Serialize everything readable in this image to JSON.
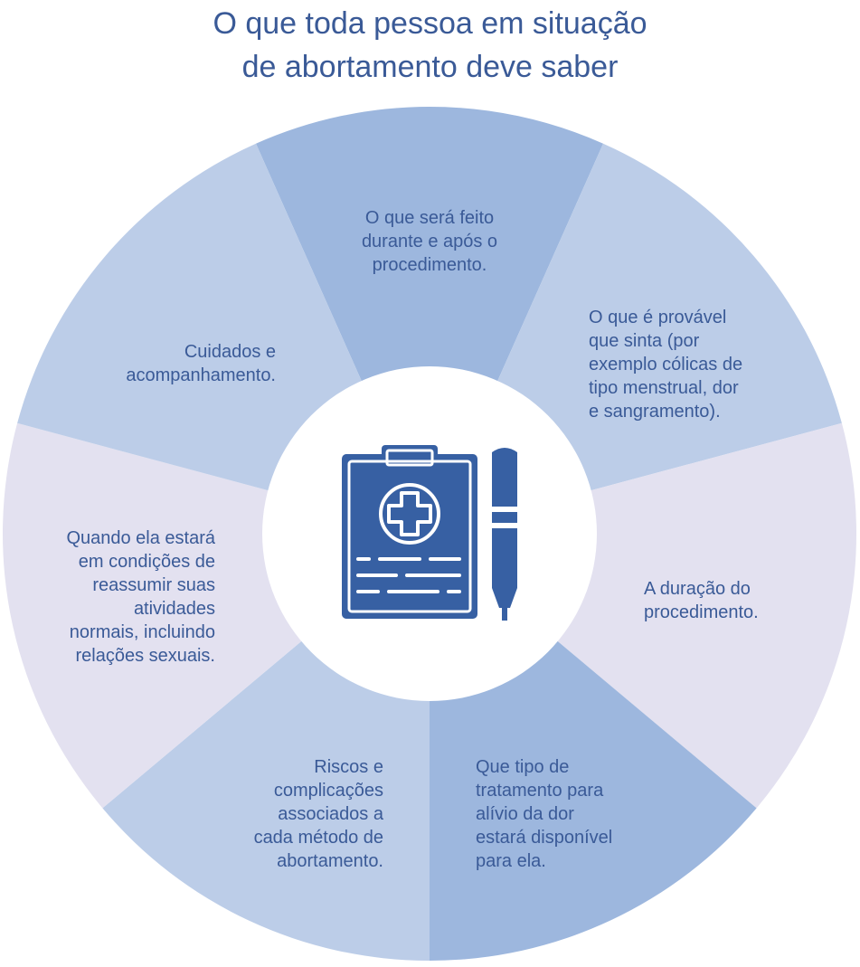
{
  "title": {
    "line1": "O que toda pessoa em situação",
    "line2": "de abortamento deve saber"
  },
  "colors": {
    "title": "#3a5a97",
    "text": "#3a5a97",
    "icon": "#3760a3",
    "segment_dark": "#9db7de",
    "segment_medium": "#bccde8",
    "segment_light": "#e3e1f0",
    "center": "#ffffff"
  },
  "center": {
    "icon": "medical-clipboard-and-pen-icon"
  },
  "segments": [
    {
      "id": "procedimento",
      "lines": [
        "O que será feito",
        "durante e após o",
        "procedimento."
      ]
    },
    {
      "id": "sintomas",
      "lines": [
        "O que é provável",
        "que sinta (por",
        "exemplo cólicas de",
        "tipo menstrual, dor",
        "e sangramento)."
      ]
    },
    {
      "id": "duracao",
      "lines": [
        "A duração do",
        "procedimento."
      ]
    },
    {
      "id": "dor",
      "lines": [
        "Que tipo de",
        "tratamento para",
        "alívio da dor",
        "estará disponível",
        "para ela."
      ]
    },
    {
      "id": "riscos",
      "lines": [
        "Riscos e",
        "complicações",
        "associados a",
        "cada método de",
        "abortamento."
      ]
    },
    {
      "id": "retorno",
      "lines": [
        "Quando ela estará",
        "em condições de",
        "reassumir suas",
        "atividades",
        "normais, incluindo",
        "relações sexuais."
      ]
    },
    {
      "id": "cuidados",
      "lines": [
        "Cuidados e",
        "acompanhamento."
      ]
    }
  ]
}
